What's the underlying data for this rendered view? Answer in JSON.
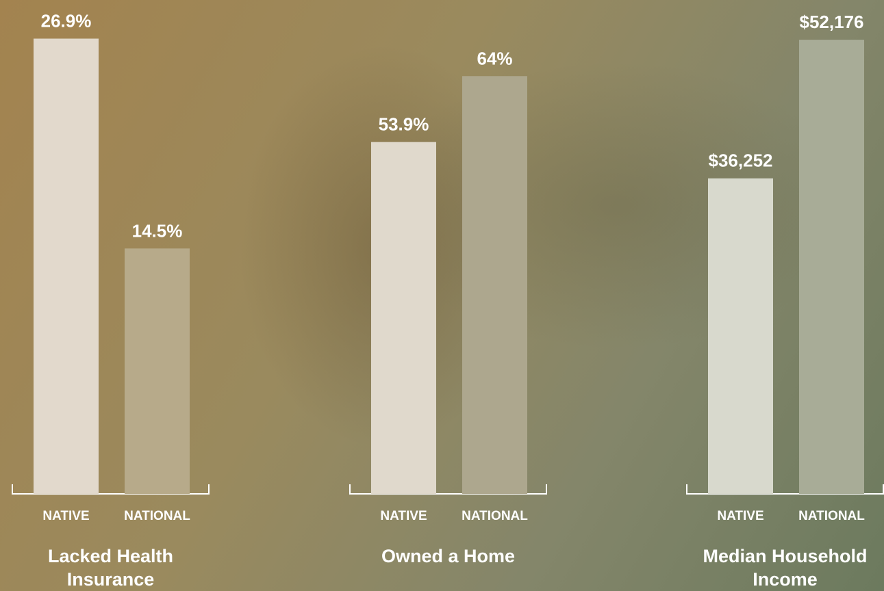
{
  "chart_data": [
    {
      "type": "bar",
      "title": "Lacked Health Insurance",
      "categories": [
        "NATIVE",
        "NATIONAL"
      ],
      "values": [
        26.9,
        14.5
      ],
      "value_labels": [
        "26.9%",
        "14.5%"
      ],
      "ylim": [
        0,
        27
      ],
      "colors": [
        "#e2d9cc",
        "#b7aa8a"
      ]
    },
    {
      "type": "bar",
      "title": "Owned a Home",
      "categories": [
        "NATIVE",
        "NATIONAL"
      ],
      "values": [
        53.9,
        64
      ],
      "value_labels": [
        "53.9%",
        "64%"
      ],
      "ylim": [
        0,
        70
      ],
      "colors": [
        "#e0d9cc",
        "#ada78e"
      ]
    },
    {
      "type": "bar",
      "title": "Median Household Income",
      "categories": [
        "NATIVE",
        "NATIONAL"
      ],
      "values": [
        36252,
        52176
      ],
      "value_labels": [
        "$36,252",
        "$52,176"
      ],
      "ylim": [
        0,
        52500
      ],
      "colors": [
        "#d8d9cd",
        "#a8ac97"
      ]
    }
  ]
}
